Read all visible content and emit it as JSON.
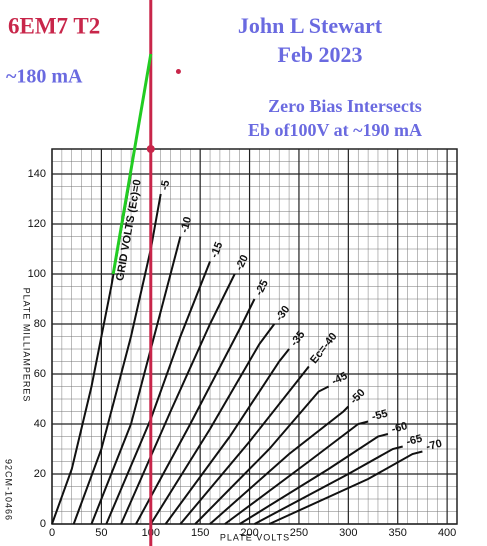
{
  "chart_data": {
    "type": "line",
    "title": "6EM7 T2",
    "annotations": [
      "John L Stewart",
      "Feb 2023",
      "~180 mA",
      "Zero Bias Intersects",
      "Eb of100V at ~190 mA"
    ],
    "code": "92CM-10466",
    "x_label": "PLATE VOLTS",
    "y_label": "PLATE MILLIAMPERES",
    "xlim": [
      0,
      410
    ],
    "ylim": [
      0,
      150
    ],
    "xticks": [
      0,
      50,
      100,
      150,
      200,
      250,
      300,
      350,
      400
    ],
    "yticks": [
      0,
      20,
      40,
      60,
      80,
      100,
      120,
      140
    ],
    "grid": true,
    "line_color": "#111111",
    "series": [
      {
        "name": "GRID VOLTS (Ec)=0",
        "x": [
          0,
          20,
          40,
          60,
          80
        ],
        "values": [
          0,
          22,
          55,
          95,
          140
        ]
      },
      {
        "name": "-5",
        "x": [
          22,
          50,
          80,
          100,
          110
        ],
        "values": [
          0,
          30,
          75,
          110,
          132
        ]
      },
      {
        "name": "-10",
        "x": [
          40,
          80,
          110,
          130
        ],
        "values": [
          0,
          40,
          85,
          115
        ]
      },
      {
        "name": "-15",
        "x": [
          55,
          100,
          130,
          160
        ],
        "values": [
          0,
          42,
          75,
          105
        ]
      },
      {
        "name": "-20",
        "x": [
          70,
          120,
          160,
          185
        ],
        "values": [
          0,
          45,
          80,
          100
        ]
      },
      {
        "name": "-25",
        "x": [
          85,
          140,
          190,
          205
        ],
        "values": [
          0,
          40,
          78,
          90
        ]
      },
      {
        "name": "-30",
        "x": [
          100,
          160,
          210,
          225
        ],
        "values": [
          0,
          38,
          72,
          80
        ]
      },
      {
        "name": "-35",
        "x": [
          115,
          180,
          230,
          240
        ],
        "values": [
          0,
          35,
          65,
          70
        ]
      },
      {
        "name": "Ec=-40",
        "x": [
          130,
          200,
          250,
          260
        ],
        "values": [
          0,
          33,
          58,
          63
        ]
      },
      {
        "name": "-45",
        "x": [
          145,
          220,
          270,
          280
        ],
        "values": [
          0,
          30,
          53,
          55
        ]
      },
      {
        "name": "-50",
        "x": [
          160,
          240,
          295,
          300
        ],
        "values": [
          0,
          28,
          45,
          47
        ]
      },
      {
        "name": "-55",
        "x": [
          175,
          260,
          310,
          320
        ],
        "values": [
          0,
          25,
          40,
          41
        ]
      },
      {
        "name": "-60",
        "x": [
          190,
          280,
          330,
          340
        ],
        "values": [
          0,
          22,
          35,
          36
        ]
      },
      {
        "name": "-65",
        "x": [
          205,
          300,
          345,
          355
        ],
        "values": [
          0,
          20,
          30,
          31
        ]
      },
      {
        "name": "-70",
        "x": [
          220,
          320,
          365,
          375
        ],
        "values": [
          0,
          18,
          28,
          29
        ]
      }
    ],
    "vline": {
      "x": 100,
      "color": "#c8264a"
    },
    "extrapolation": {
      "color": "#22cc22",
      "x": [
        62,
        100
      ],
      "values": [
        100,
        188
      ]
    },
    "points": {
      "color": "#c8264a",
      "x": [
        100,
        128
      ],
      "values": [
        150,
        181
      ]
    }
  }
}
